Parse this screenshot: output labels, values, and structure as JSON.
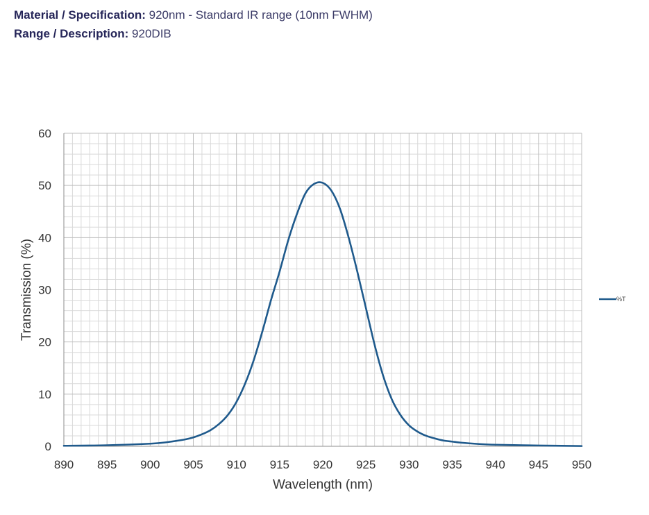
{
  "header": {
    "spec_label": "Material / Specification:",
    "spec_value": "920nm - Standard IR range (10nm FWHM)",
    "range_label": "Range / Description:",
    "range_value": "920DIB"
  },
  "colors": {
    "series": "#1f5a8c",
    "grid_major": "#bdbdbd",
    "grid_minor": "#d9d9d9",
    "text": "#333333",
    "header_text": "#262659"
  },
  "chart_data": {
    "type": "line",
    "xlabel": "Wavelength (nm)",
    "ylabel": "Transmission (%)",
    "xlim": [
      890,
      950
    ],
    "ylim": [
      0,
      60
    ],
    "x_ticks": [
      890,
      895,
      900,
      905,
      910,
      915,
      920,
      925,
      930,
      935,
      940,
      945,
      950
    ],
    "y_ticks": [
      0,
      10,
      20,
      30,
      40,
      50,
      60
    ],
    "grid": true,
    "legend_position": "right",
    "series": [
      {
        "name": "%T",
        "color": "#1f5a8c",
        "x": [
          890,
          895,
          900,
          902,
          904,
          905,
          906,
          907,
          908,
          909,
          910,
          911,
          912,
          913,
          914,
          915,
          916,
          917,
          918,
          919,
          920,
          921,
          922,
          923,
          924,
          925,
          926,
          927,
          928,
          929,
          930,
          931,
          932,
          933,
          934,
          935,
          936,
          938,
          940,
          945,
          950
        ],
        "y": [
          0.1,
          0.2,
          0.5,
          0.8,
          1.3,
          1.7,
          2.3,
          3.1,
          4.3,
          6.0,
          8.5,
          12.0,
          16.5,
          22.0,
          28.0,
          33.5,
          39.5,
          44.5,
          48.5,
          50.3,
          50.5,
          49.0,
          45.5,
          40.0,
          33.5,
          26.5,
          19.5,
          13.5,
          9.0,
          6.0,
          4.0,
          2.8,
          2.0,
          1.5,
          1.1,
          0.9,
          0.7,
          0.45,
          0.3,
          0.15,
          0.05
        ]
      }
    ]
  }
}
